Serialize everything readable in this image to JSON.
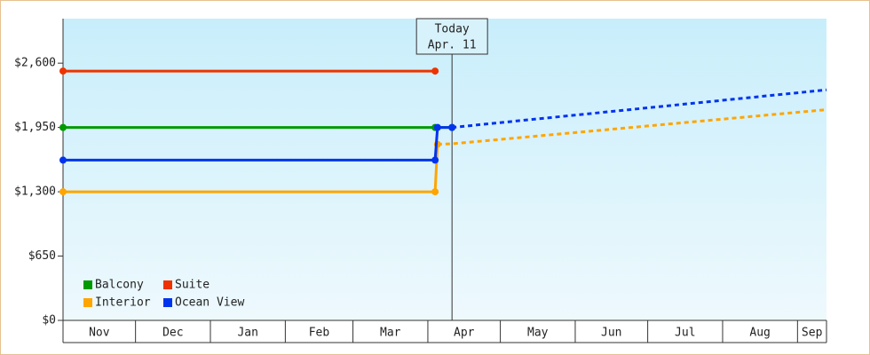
{
  "chart_data": {
    "type": "line",
    "categories": [
      "Nov",
      "Dec",
      "Jan",
      "Feb",
      "Mar",
      "Apr",
      "May",
      "Jun",
      "Jul",
      "Aug",
      "Sep"
    ],
    "xticks": [
      0,
      30,
      61,
      92,
      120,
      151,
      181,
      212,
      242,
      273,
      304
    ],
    "xlim": [
      0,
      316
    ],
    "ylim": [
      0,
      3050
    ],
    "yticks": [
      {
        "value": 0,
        "label": "$0"
      },
      {
        "value": 650,
        "label": "$650"
      },
      {
        "value": 1300,
        "label": "$1,300"
      },
      {
        "value": 1950,
        "label": "$1,950"
      },
      {
        "value": 2600,
        "label": "$2,600"
      }
    ],
    "annotation": {
      "x": 161,
      "text": "Today",
      "date": "Apr. 11"
    },
    "series": [
      {
        "name": "Balcony",
        "color": "#009900",
        "x": [
          0,
          154,
          161
        ],
        "values": [
          1950,
          1950,
          1950
        ],
        "forecast_x": [],
        "forecast_values": []
      },
      {
        "name": "Suite",
        "color": "#ee3300",
        "x": [
          0,
          154
        ],
        "values": [
          2520,
          2520
        ],
        "forecast_x": [],
        "forecast_values": []
      },
      {
        "name": "Interior",
        "color": "#ffa500",
        "x": [
          0,
          154,
          155
        ],
        "values": [
          1300,
          1300,
          1780
        ],
        "forecast_x": [
          155,
          161,
          316
        ],
        "forecast_values": [
          1780,
          1785,
          2130
        ]
      },
      {
        "name": "Ocean View",
        "color": "#0033ee",
        "x": [
          0,
          154,
          155,
          161
        ],
        "values": [
          1620,
          1620,
          1950,
          1950
        ],
        "forecast_x": [
          161,
          316
        ],
        "forecast_values": [
          1950,
          2330
        ]
      }
    ]
  }
}
